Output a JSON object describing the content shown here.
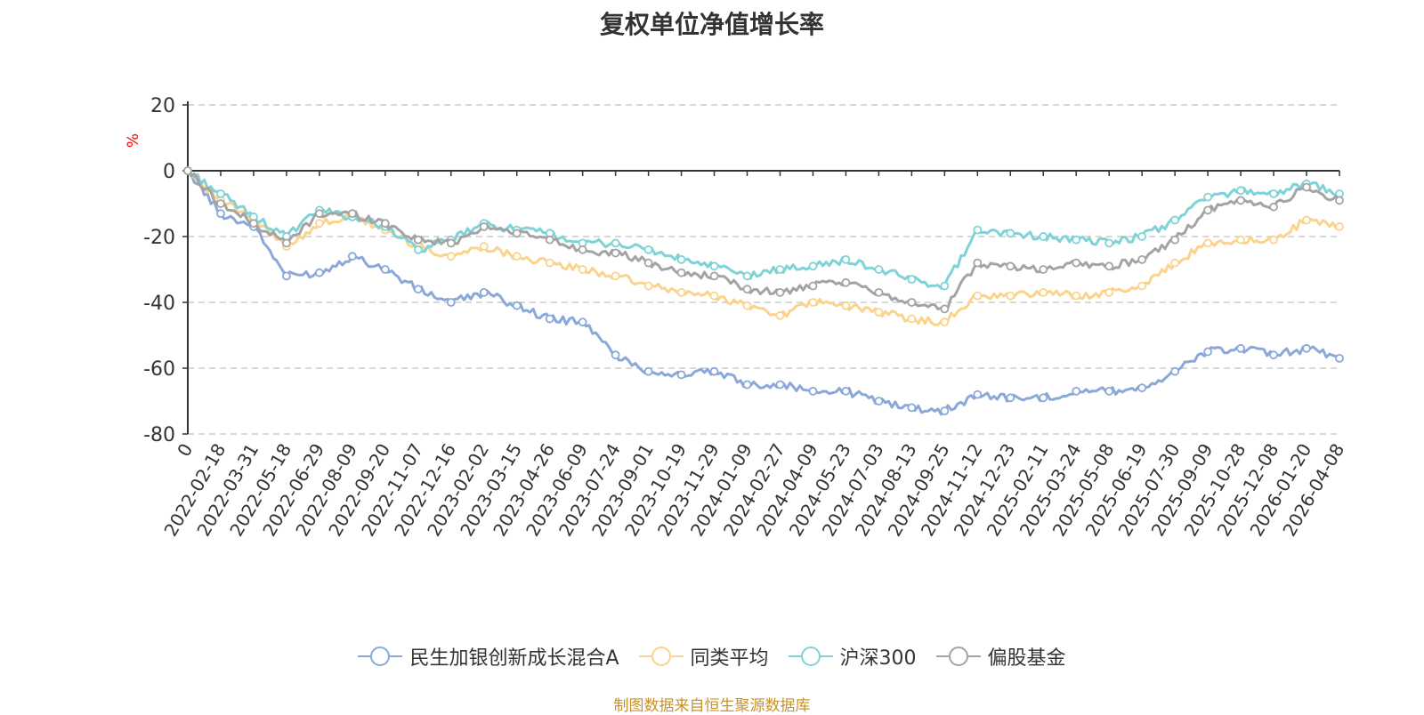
{
  "chart_data": {
    "type": "line",
    "title": "复权单位净值增长率",
    "ylabel": "%",
    "xlabel": "",
    "ylim": [
      -80,
      20
    ],
    "yticks": [
      20,
      0,
      -20,
      -40,
      -60,
      -80
    ],
    "grid": true,
    "legend_position": "bottom-center",
    "categories": [
      "0",
      "2022-02-18",
      "2022-03-31",
      "2022-05-18",
      "2022-06-29",
      "2022-08-09",
      "2022-09-20",
      "2022-11-07",
      "2022-12-16",
      "2023-02-02",
      "2023-03-15",
      "2023-04-26",
      "2023-06-09",
      "2023-07-24",
      "2023-09-01",
      "2023-10-19",
      "2023-11-29",
      "2024-01-09",
      "2024-02-27",
      "2024-04-09",
      "2024-05-23",
      "2024-07-03",
      "2024-08-13",
      "2024-09-25",
      "2024-11-12",
      "2024-12-23",
      "2025-02-11",
      "2025-03-24",
      "2025-05-08",
      "2025-06-19",
      "2025-07-30",
      "2025-09-09",
      "2025-10-28",
      "2025-12-08",
      "2026-01-20",
      "2026-04-08"
    ],
    "series": [
      {
        "name": "民生加银创新成长混合A",
        "color": "#8aa8d8",
        "values": [
          0,
          -13,
          -17,
          -32,
          -31,
          -26,
          -30,
          -36,
          -40,
          -37,
          -41,
          -45,
          -46,
          -56,
          -61,
          -62,
          -61,
          -65,
          -65,
          -67,
          -67,
          -70,
          -72,
          -73,
          -68,
          -69,
          -69,
          -67,
          -67,
          -66,
          -61,
          -55,
          -54,
          -56,
          -54,
          -57
        ]
      },
      {
        "name": "同类平均",
        "color": "#fad38c",
        "values": [
          0,
          -9,
          -15,
          -23,
          -16,
          -14,
          -18,
          -23,
          -26,
          -23,
          -26,
          -28,
          -30,
          -32,
          -35,
          -37,
          -38,
          -41,
          -44,
          -40,
          -41,
          -43,
          -45,
          -46,
          -38,
          -38,
          -37,
          -38,
          -37,
          -35,
          -28,
          -22,
          -21,
          -21,
          -15,
          -17
        ]
      },
      {
        "name": "沪深300",
        "color": "#7fd3d6",
        "values": [
          0,
          -7,
          -14,
          -20,
          -12,
          -14,
          -17,
          -24,
          -21,
          -16,
          -18,
          -19,
          -22,
          -22,
          -24,
          -27,
          -29,
          -32,
          -30,
          -29,
          -27,
          -30,
          -33,
          -35,
          -18,
          -19,
          -20,
          -21,
          -22,
          -20,
          -15,
          -8,
          -6,
          -7,
          -4,
          -7
        ]
      },
      {
        "name": "偏股基金",
        "color": "#a4a4a4",
        "values": [
          0,
          -10,
          -16,
          -22,
          -13,
          -13,
          -16,
          -21,
          -22,
          -17,
          -19,
          -21,
          -24,
          -25,
          -28,
          -31,
          -32,
          -36,
          -37,
          -35,
          -34,
          -37,
          -40,
          -42,
          -28,
          -29,
          -30,
          -28,
          -29,
          -27,
          -21,
          -12,
          -9,
          -11,
          -5,
          -9
        ]
      }
    ]
  },
  "source_note": "制图数据来自恒生聚源数据库"
}
